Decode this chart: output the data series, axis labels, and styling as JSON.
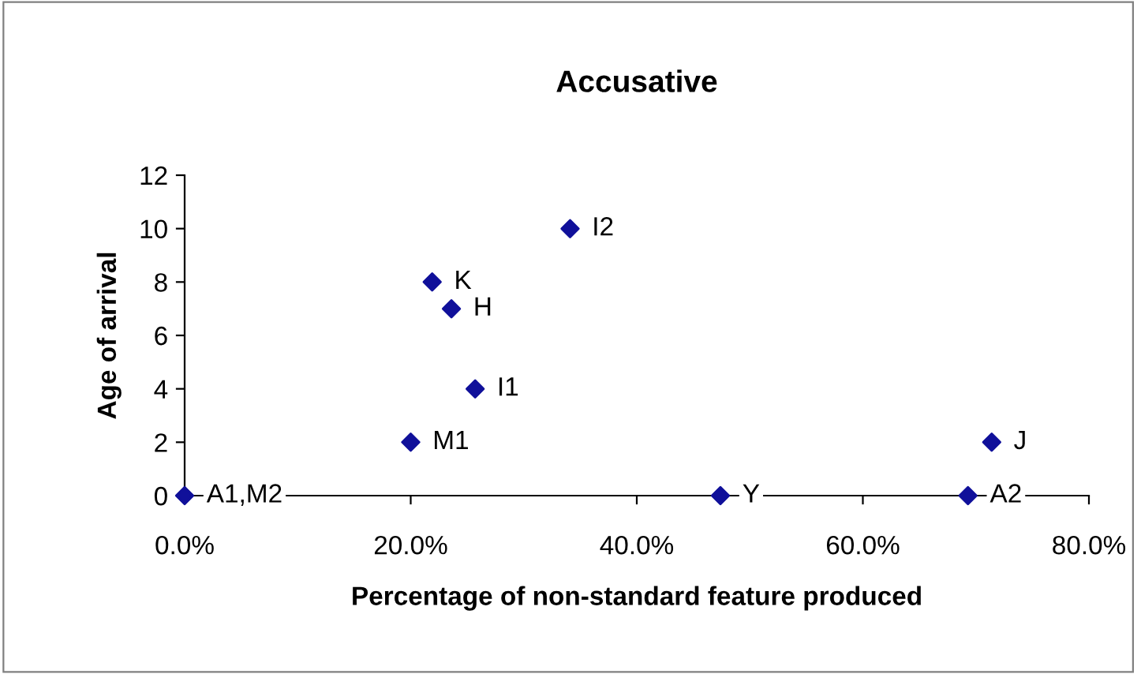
{
  "chart_data": {
    "type": "scatter",
    "title": "Accusative",
    "xlabel": "Percentage of non-standard feature produced",
    "ylabel": "Age of arrival",
    "x": [
      0.0,
      0.2,
      0.219,
      0.236,
      0.257,
      0.341,
      0.474,
      0.693,
      0.714
    ],
    "series": [
      {
        "color": "#10109a",
        "values": [
          0,
          2,
          8,
          7,
          4,
          10,
          0,
          0,
          2
        ]
      }
    ],
    "marker": "diamond",
    "grid": false,
    "legend": false,
    "xlim": [
      0,
      0.8
    ],
    "ylim": [
      0,
      12
    ],
    "xticks": [
      {
        "value": 0,
        "label": "0.0%"
      },
      {
        "value": 0.2,
        "label": "20.0%"
      },
      {
        "value": 0.4,
        "label": "40.0%"
      },
      {
        "value": 0.6,
        "label": "60.0%"
      },
      {
        "value": 0.8,
        "label": "80.0%"
      }
    ],
    "yticks": [
      0,
      2,
      4,
      6,
      8,
      10,
      12
    ],
    "annotations": [
      {
        "text": "A1,M2",
        "x": 0.0,
        "y": 0
      },
      {
        "text": "M1",
        "x": 0.2,
        "y": 2
      },
      {
        "text": "K",
        "x": 0.219,
        "y": 8
      },
      {
        "text": "H",
        "x": 0.236,
        "y": 7
      },
      {
        "text": "I1",
        "x": 0.257,
        "y": 4
      },
      {
        "text": "I2",
        "x": 0.341,
        "y": 10
      },
      {
        "text": "Y",
        "x": 0.474,
        "y": 0
      },
      {
        "text": "A2",
        "x": 0.693,
        "y": 0
      },
      {
        "text": "J",
        "x": 0.714,
        "y": 2
      }
    ]
  }
}
